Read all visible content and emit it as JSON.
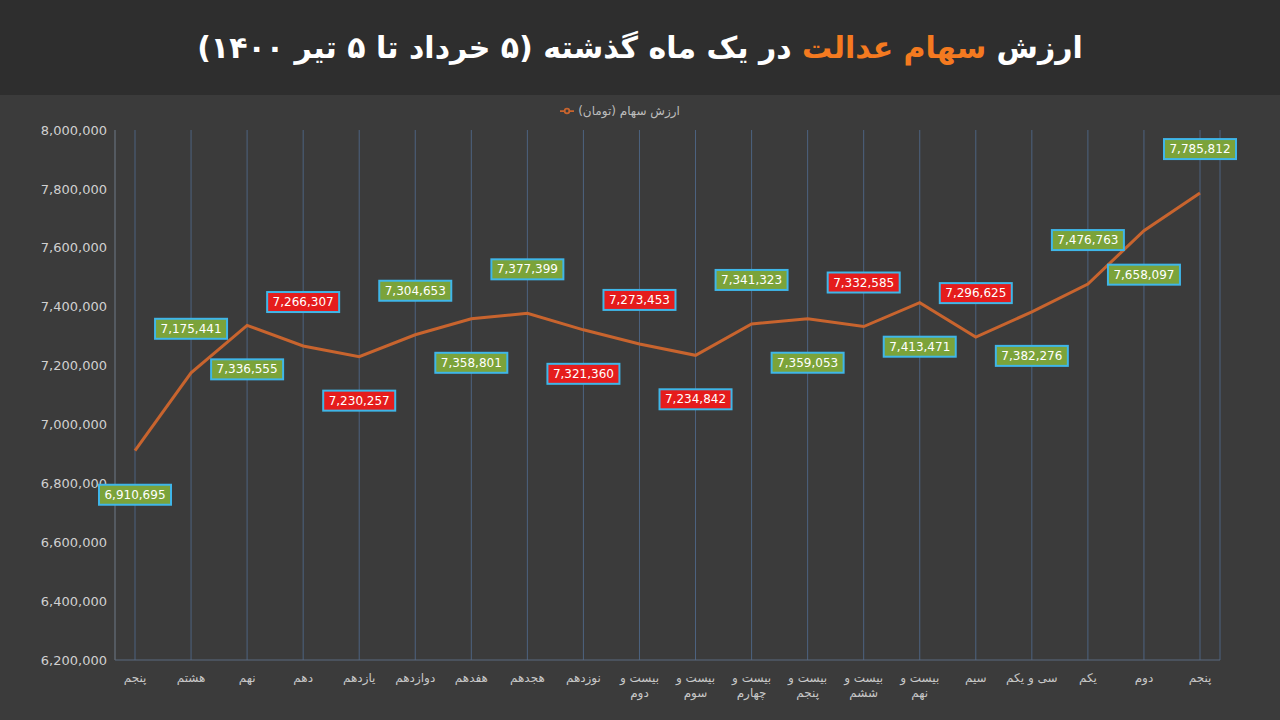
{
  "chart_data": {
    "type": "line",
    "title": "ارزش سهام عدالت در یک ماه گذشته (۵ خرداد تا ۵ تیر ۱۴۰۰)",
    "categories": [
      "پنجم",
      "هشتم",
      "نهم",
      "دهم",
      "یازدهم",
      "دوازدهم",
      "هفدهم",
      "هجدهم",
      "نوزدهم",
      "بیست و دوم",
      "بیست و سوم",
      "بیست و چهارم",
      "بیست و پنجم",
      "بیست و ششم",
      "بیست و نهم",
      "سیم",
      "سی و یکم",
      "یکم",
      "دوم",
      "پنجم"
    ],
    "series": [
      {
        "name": "ارزش سهام (تومان)",
        "color": "#c8642e",
        "values": [
          6910695,
          7175441,
          7336555,
          7266307,
          7230257,
          7304653,
          7358801,
          7377399,
          7321360,
          7273453,
          7234842,
          7341323,
          7359053,
          7332585,
          7413471,
          7296625,
          7382276,
          7476763,
          7658097,
          7785812
        ],
        "value_labels": [
          "6,910,695",
          "7,175,441",
          "7,336,555",
          "7,266,307",
          "7,230,257",
          "7,304,653",
          "7,358,801",
          "7,377,399",
          "7,321,360",
          "7,273,453",
          "7,234,842",
          "7,341,323",
          "7,359,053",
          "7,332,585",
          "7,413,471",
          "7,296,625",
          "7,382,276",
          "7,476,763",
          "7,658,097",
          "7,785,812"
        ],
        "marker": "none"
      }
    ],
    "colors": [
      "#7ba33a",
      "#7ba33a",
      "#7ba33a",
      "#e51c1c",
      "#e51c1c",
      "#7ba33a",
      "#7ba33a",
      "#7ba33a",
      "#e51c1c",
      "#e51c1c",
      "#e51c1c",
      "#7ba33a",
      "#7ba33a",
      "#e51c1c",
      "#7ba33a",
      "#e51c1c",
      "#7ba33a",
      "#7ba33a",
      "#7ba33a",
      "#7ba33a"
    ],
    "ylim": [
      6200000,
      8000000
    ],
    "yticks": [
      {
        "value": 6200000,
        "label": "6,200,000"
      },
      {
        "value": 6400000,
        "label": "6,400,000"
      },
      {
        "value": 6600000,
        "label": "6,600,000"
      },
      {
        "value": 6800000,
        "label": "6,800,000"
      },
      {
        "value": 7000000,
        "label": "7,000,000"
      },
      {
        "value": 7200000,
        "label": "7,200,000"
      },
      {
        "value": 7400000,
        "label": "7,400,000"
      },
      {
        "value": 7600000,
        "label": "7,600,000"
      },
      {
        "value": 7800000,
        "label": "7,800,000"
      },
      {
        "value": 8000000,
        "label": "8,000,000"
      }
    ],
    "grid": true,
    "legend": "top",
    "data_labels": true
  }
}
